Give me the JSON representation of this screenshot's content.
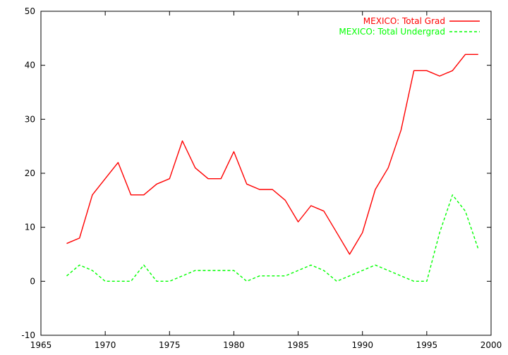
{
  "chart_data": {
    "type": "line",
    "title": "",
    "xlabel": "",
    "ylabel": "",
    "xlim": [
      1965,
      2000
    ],
    "ylim": [
      -10,
      50
    ],
    "xticks": [
      1965,
      1970,
      1975,
      1980,
      1985,
      1990,
      1995,
      2000
    ],
    "yticks": [
      -10,
      0,
      10,
      20,
      30,
      40,
      50
    ],
    "grid": false,
    "legend_position": "top-right",
    "series": [
      {
        "name": "MEXICO: Total Grad",
        "color": "#ff0000",
        "dash": "solid",
        "x": [
          1967,
          1968,
          1969,
          1970,
          1971,
          1972,
          1973,
          1974,
          1975,
          1976,
          1977,
          1978,
          1979,
          1980,
          1981,
          1982,
          1983,
          1984,
          1985,
          1986,
          1987,
          1988,
          1989,
          1990,
          1991,
          1992,
          1993,
          1994,
          1995,
          1996,
          1997,
          1998,
          1999
        ],
        "y": [
          7,
          8,
          16,
          19,
          22,
          16,
          16,
          18,
          19,
          26,
          21,
          19,
          19,
          24,
          18,
          17,
          17,
          15,
          11,
          14,
          13,
          9,
          5,
          9,
          17,
          21,
          28,
          39,
          39,
          38,
          39,
          42,
          42
        ]
      },
      {
        "name": "MEXICO: Total Undergrad",
        "color": "#00ff00",
        "dash": "dashed",
        "x": [
          1967,
          1968,
          1969,
          1970,
          1971,
          1972,
          1973,
          1974,
          1975,
          1976,
          1977,
          1978,
          1979,
          1980,
          1981,
          1982,
          1983,
          1984,
          1985,
          1986,
          1987,
          1988,
          1989,
          1990,
          1991,
          1992,
          1993,
          1994,
          1995,
          1996,
          1997,
          1998,
          1999
        ],
        "y": [
          1,
          3,
          2,
          0,
          0,
          0,
          3,
          0,
          0,
          1,
          2,
          2,
          2,
          2,
          0,
          1,
          1,
          1,
          2,
          3,
          2,
          0,
          1,
          2,
          3,
          2,
          1,
          0,
          0,
          9,
          16,
          13,
          6
        ]
      }
    ]
  }
}
